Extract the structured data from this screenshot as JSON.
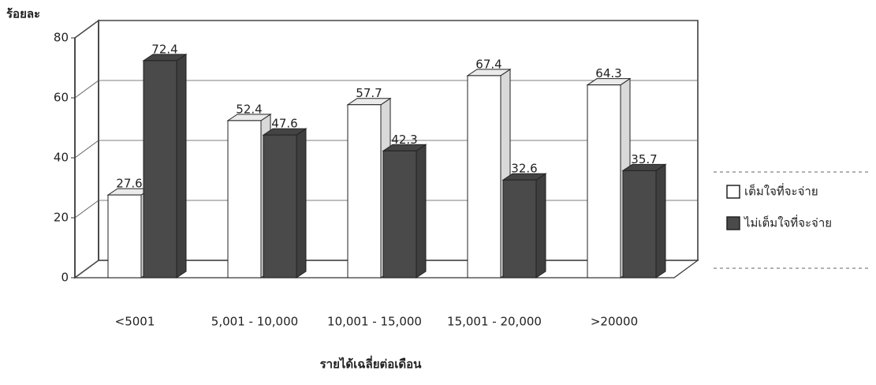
{
  "chart_data": {
    "type": "bar3d",
    "ylabel": "ร้อยละ",
    "xlabel": "รายได้เฉลี่ยต่อเดือน",
    "categories": [
      "<5001",
      "5,001 - 10,000",
      "10,001 - 15,000",
      "15,001 - 20,000",
      ">20000"
    ],
    "series": [
      {
        "name": "เต็มใจที่จะจ่าย",
        "color": "#ffffff",
        "values": [
          27.6,
          52.4,
          57.7,
          67.4,
          64.3
        ]
      },
      {
        "name": "ไม่เต็มใจที่จะจ่าย",
        "color": "#4a4a4a",
        "values": [
          72.4,
          47.6,
          42.3,
          32.6,
          35.7
        ]
      }
    ],
    "ylim": [
      0,
      80
    ],
    "yticks": [
      0,
      20,
      40,
      60,
      80
    ],
    "grid": true,
    "legend": "right"
  }
}
